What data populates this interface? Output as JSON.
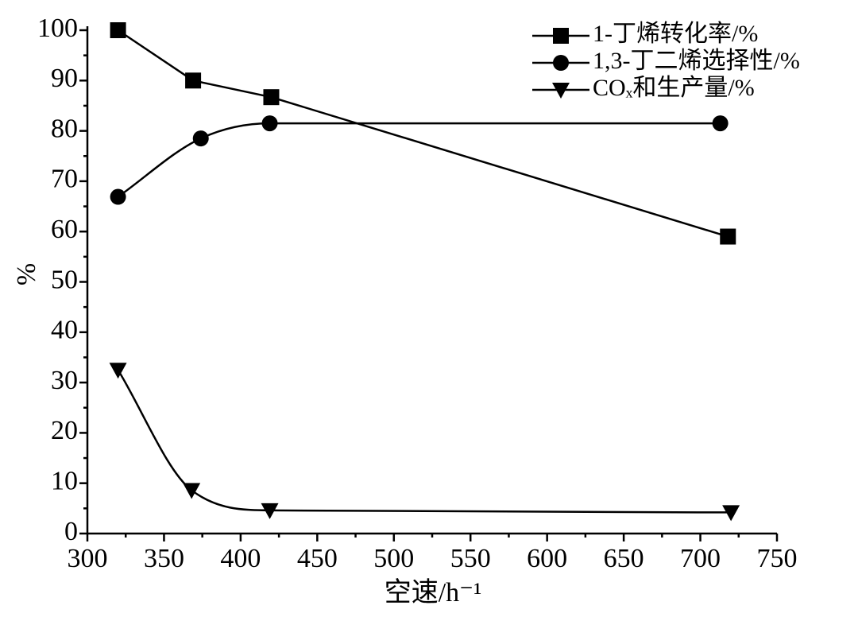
{
  "chart_data": {
    "type": "line",
    "xlabel": "空速/h⁻¹",
    "ylabel": "%",
    "xlim": [
      300,
      750
    ],
    "xticks": [
      300,
      350,
      400,
      450,
      500,
      550,
      600,
      650,
      700,
      750
    ],
    "xminor_ticks": [
      325,
      375,
      425,
      475,
      525,
      575,
      625,
      675,
      725
    ],
    "ylim": [
      0,
      100
    ],
    "yticks": [
      0,
      10,
      20,
      30,
      40,
      50,
      60,
      70,
      80,
      90,
      100
    ],
    "yminor_ticks": [
      5,
      15,
      25,
      35,
      45,
      55,
      65,
      75,
      85,
      95
    ],
    "grid": false,
    "legend": "upper right",
    "series": [
      {
        "name": "1-丁烯转化率/%",
        "color": "#000000",
        "marker": "square",
        "smooth": false,
        "x": [
          320,
          369,
          420,
          718
        ],
        "values": [
          100,
          90,
          86.7,
          59
        ]
      },
      {
        "name": "1,3-丁二烯选择性/%",
        "color": "#000000",
        "marker": "circle",
        "smooth": true,
        "x": [
          320,
          374,
          419,
          713
        ],
        "values": [
          66.9,
          78.5,
          81.5,
          81.5
        ]
      },
      {
        "name": "COₓ和生产量/%",
        "color": "#000000",
        "marker": "triangle-down",
        "smooth": true,
        "x": [
          320,
          368,
          419,
          720
        ],
        "values": [
          32.5,
          8.6,
          4.6,
          4.2
        ]
      }
    ]
  }
}
